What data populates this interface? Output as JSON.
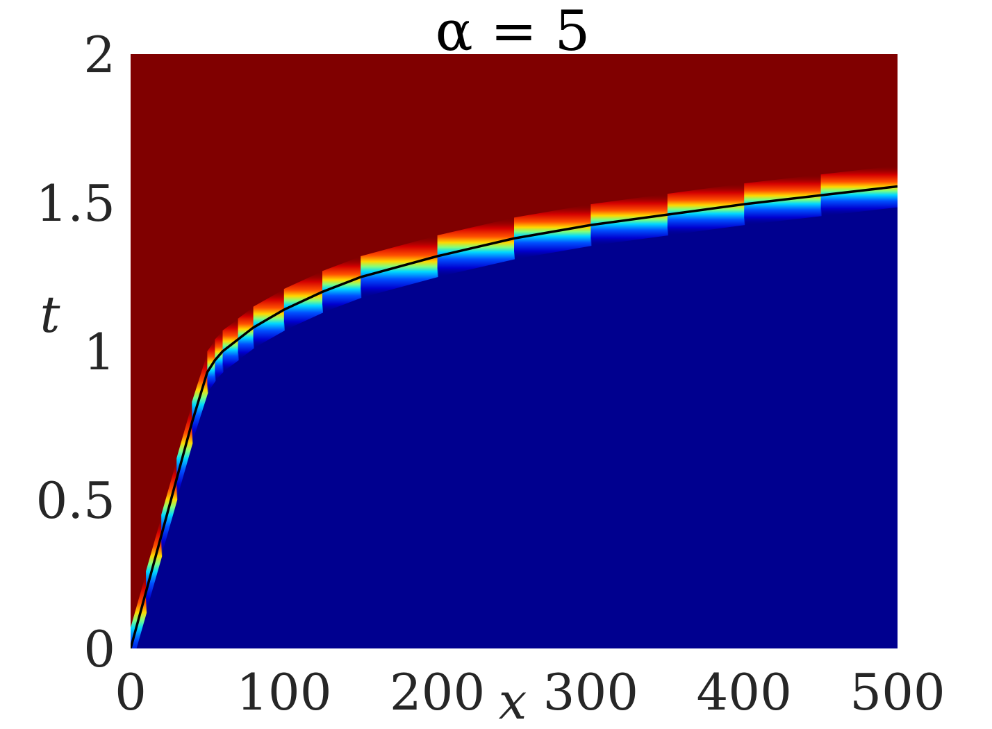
{
  "chart_data": {
    "type": "heatmap",
    "title": "α = 5",
    "xlabel": "x",
    "ylabel": "t",
    "xlim": [
      0,
      500
    ],
    "ylim": [
      0,
      2
    ],
    "xticks": [
      0,
      100,
      200,
      300,
      400,
      500
    ],
    "yticks": [
      0,
      0.5,
      1,
      1.5,
      2
    ],
    "xtick_labels": [
      "0",
      "100",
      "200",
      "300",
      "400",
      "500"
    ],
    "ytick_labels": [
      "0",
      "0.5",
      "1",
      "1.5",
      "2"
    ],
    "grid": false,
    "colormap": "jet",
    "colors": {
      "upper_region": "#800000",
      "lower_region": "#00008f",
      "front_line": "#000000"
    },
    "front_curve": {
      "name": "",
      "x": [
        0,
        10,
        20,
        30,
        40,
        50,
        55,
        60,
        70,
        80,
        100,
        125,
        150,
        200,
        250,
        300,
        350,
        400,
        450,
        500
      ],
      "t": [
        0,
        0.19,
        0.38,
        0.57,
        0.76,
        0.93,
        0.97,
        1.0,
        1.04,
        1.08,
        1.14,
        1.2,
        1.25,
        1.32,
        1.38,
        1.425,
        1.46,
        1.495,
        1.525,
        1.555
      ]
    }
  }
}
